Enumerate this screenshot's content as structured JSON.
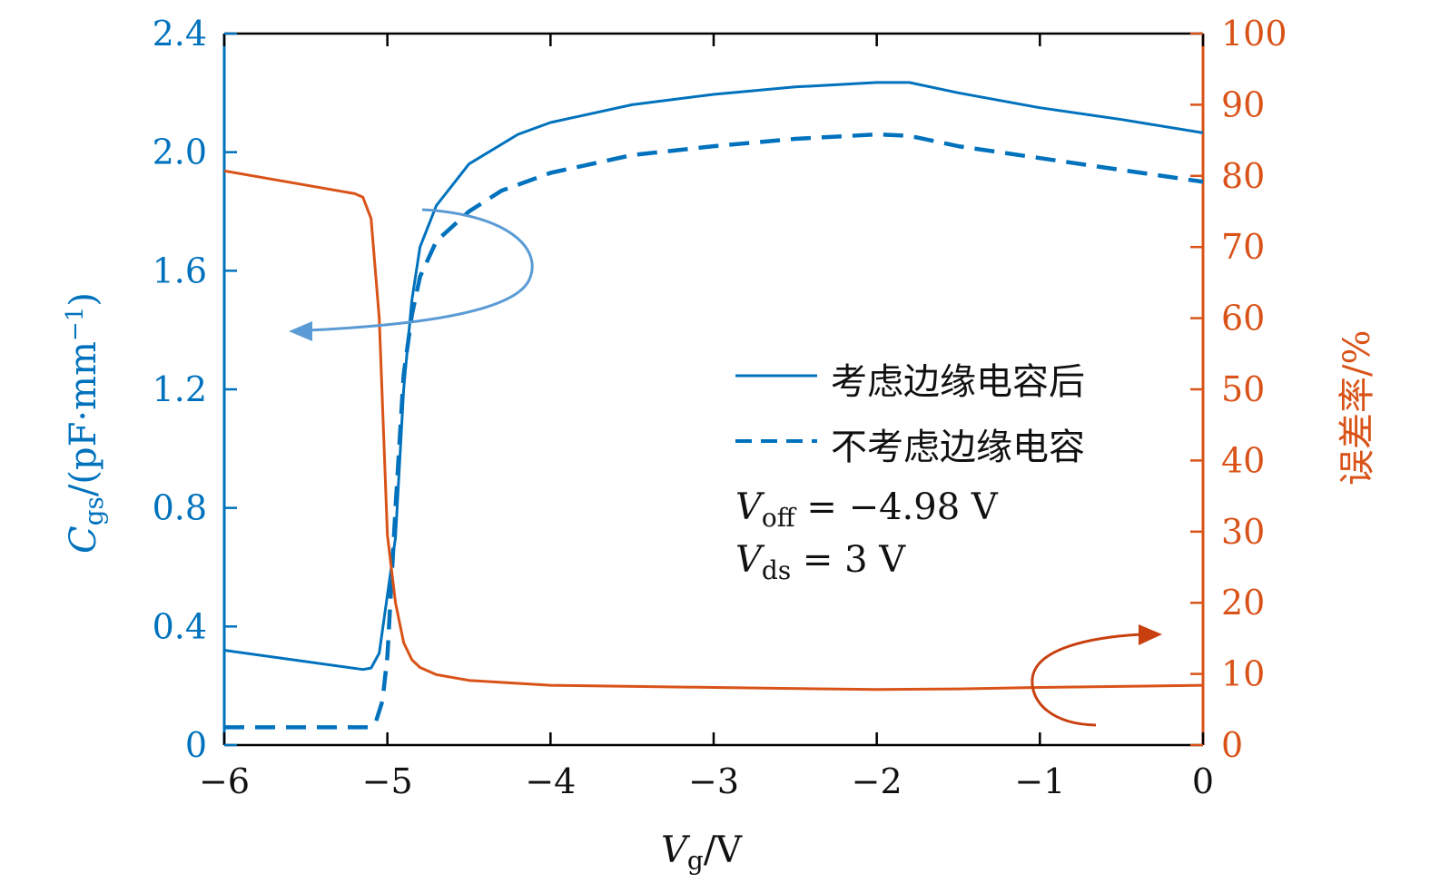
{
  "chart_data": {
    "type": "line",
    "xlabel": {
      "main": "V",
      "sub": "g",
      "rest": "/V"
    },
    "ylabel_left": {
      "main": "C",
      "sub": "gs",
      "rest": "/(pF·mm",
      "sup": "−1",
      "close": ")"
    },
    "ylabel_right": "误差率/%",
    "xlim": [
      -6,
      0
    ],
    "ylim_left": [
      0,
      2.4
    ],
    "ylim_right": [
      0,
      100
    ],
    "x_ticks": [
      -6,
      -5,
      -4,
      -3,
      -2,
      -1,
      0
    ],
    "x_tick_labels": [
      "−6",
      "−5",
      "−4",
      "−3",
      "−2",
      "−1",
      "0"
    ],
    "y_left_ticks": [
      0,
      0.4,
      0.8,
      1.2,
      1.6,
      2.0,
      2.4
    ],
    "y_left_tick_labels": [
      "0",
      "0.4",
      "0.8",
      "1.2",
      "1.6",
      "2.0",
      "2.4"
    ],
    "y_right_ticks": [
      0,
      10,
      20,
      30,
      40,
      50,
      60,
      70,
      80,
      90,
      100
    ],
    "y_right_tick_labels": [
      "0",
      "10",
      "20",
      "30",
      "40",
      "50",
      "60",
      "70",
      "80",
      "90",
      "100"
    ],
    "grid": false,
    "legend_placement": "center-right",
    "colors": {
      "left_axis": "#0072BD",
      "right_axis": "#D95319",
      "left_arrow": "#5B9BD5",
      "right_arrow": "#C8400F"
    },
    "series": [
      {
        "name": "考虑边缘电容后",
        "axis": "left",
        "style": "solid",
        "x": [
          -6,
          -5.15,
          -5.1,
          -5.05,
          -4.95,
          -4.9,
          -4.85,
          -4.8,
          -4.7,
          -4.5,
          -4.2,
          -4,
          -3.5,
          -3,
          -2.5,
          -2,
          -1.8,
          -1.5,
          -1,
          -0.5,
          0
        ],
        "y": [
          0.32,
          0.255,
          0.26,
          0.31,
          0.7,
          1.2,
          1.5,
          1.68,
          1.82,
          1.96,
          2.06,
          2.1,
          2.16,
          2.195,
          2.22,
          2.235,
          2.235,
          2.2,
          2.15,
          2.11,
          2.065
        ]
      },
      {
        "name": "不考虑边缘电容",
        "axis": "left",
        "style": "dashed",
        "x": [
          -6,
          -5.12,
          -5.07,
          -5.03,
          -5,
          -4.95,
          -4.9,
          -4.85,
          -4.8,
          -4.7,
          -4.5,
          -4.3,
          -4,
          -3.5,
          -3,
          -2.5,
          -2,
          -1.8,
          -1.5,
          -1,
          -0.5,
          0
        ],
        "y": [
          0.06,
          0.06,
          0.08,
          0.15,
          0.3,
          0.8,
          1.25,
          1.45,
          1.58,
          1.7,
          1.8,
          1.87,
          1.93,
          1.99,
          2.02,
          2.045,
          2.06,
          2.055,
          2.02,
          1.98,
          1.94,
          1.9
        ]
      },
      {
        "axis": "right",
        "style": "solid",
        "x": [
          -6,
          -5.2,
          -5.15,
          -5.1,
          -5.05,
          -5.0,
          -4.95,
          -4.9,
          -4.85,
          -4.8,
          -4.7,
          -4.5,
          -4,
          -3,
          -2,
          -1.5,
          -1,
          0
        ],
        "y": [
          80.7,
          77.5,
          77,
          74,
          60,
          29.5,
          20,
          14.4,
          12,
          10.9,
          9.9,
          9.1,
          8.4,
          8.1,
          7.8,
          7.9,
          8.1,
          8.4
        ]
      }
    ],
    "annotations": [
      {
        "main": "V",
        "sub": "off",
        "rest": " = −4.98 V"
      },
      {
        "main": "V",
        "sub": "ds",
        "rest": " = 3 V"
      }
    ]
  }
}
